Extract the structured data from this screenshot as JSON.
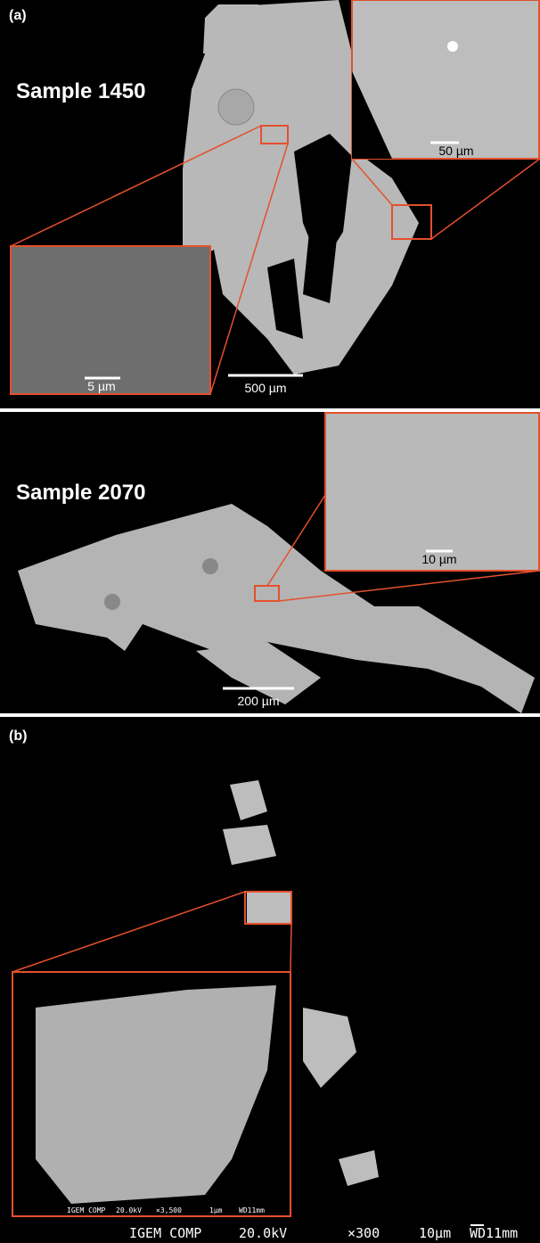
{
  "panel_a": {
    "label": "(a)",
    "sample_1450": {
      "title": "Sample 1450",
      "scale_bar": "500 µm",
      "inset_top_scale": "50 µm",
      "inset_left_scale": "5 µm"
    },
    "sample_2070": {
      "title": "Sample 2070",
      "scale_bar": "200 µm",
      "inset_scale": "10 µm"
    }
  },
  "panel_b": {
    "label": "(b)",
    "inset_info": [
      "IGEM COMP",
      "20.0kV",
      "×3,500",
      "1µm",
      "WD11mm"
    ],
    "info": [
      "IGEM COMP",
      "20.0kV",
      "×300",
      "10µm",
      "WD11mm"
    ]
  }
}
